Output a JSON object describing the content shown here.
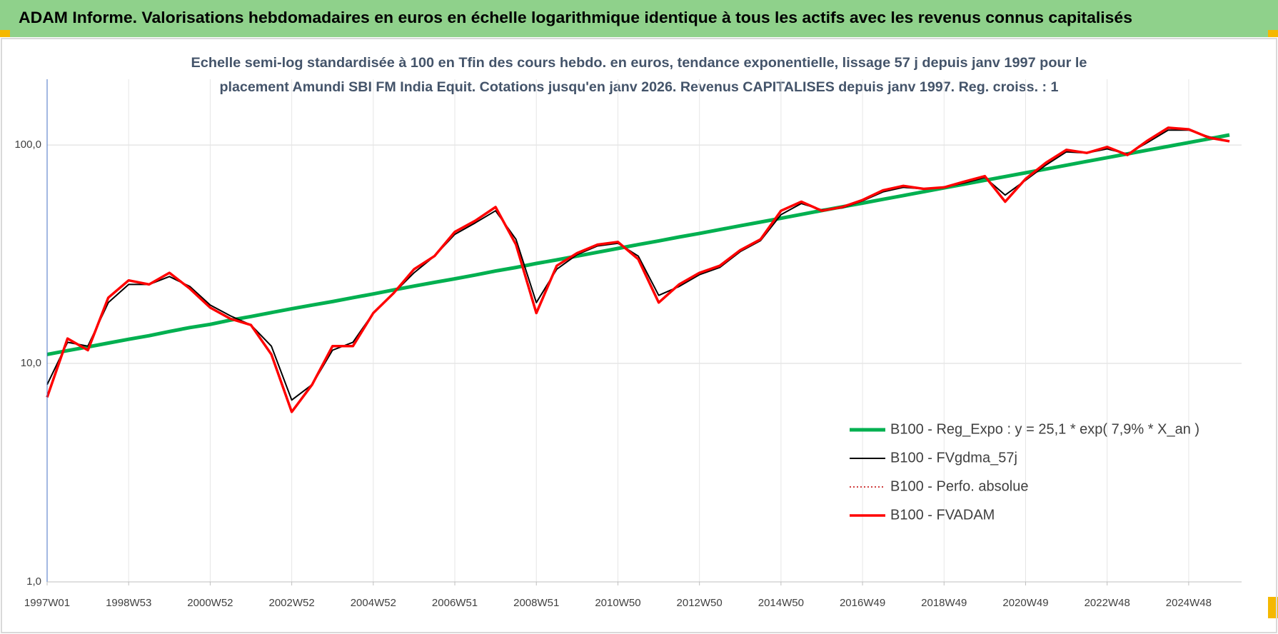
{
  "chart_data": {
    "type": "line",
    "header": "ADAM Informe. Valorisations hebdomadaires en euros en échelle logarithmique identique à tous les actifs avec les revenus connus capitalisés",
    "subtitle": [
      "Echelle semi-log standardisée à 100 en Tfin des cours hebdo. en euros, tendance exponentielle, lissage 57 j depuis janv 1997 pour le",
      "placement Amundi SBI FM India Equit. Cotations jusqu'en janv 2026. Revenus CAPITALISES depuis janv 1997. Reg. croiss. : 1"
    ],
    "log_scale": true,
    "grid": true,
    "legend": "lower right",
    "ylim": [
      1,
      200
    ],
    "yticks": [
      {
        "value": 1,
        "label": "1,0"
      },
      {
        "value": 10,
        "label": "10,0"
      },
      {
        "value": 100,
        "label": "100,0"
      }
    ],
    "categories": [
      "1997W01",
      null,
      null,
      null,
      "1998W53",
      null,
      null,
      null,
      "2000W52",
      null,
      null,
      null,
      "2002W52",
      null,
      null,
      null,
      "2004W52",
      null,
      null,
      null,
      "2006W51",
      null,
      null,
      null,
      "2008W51",
      null,
      null,
      null,
      "2010W50",
      null,
      null,
      null,
      "2012W50",
      null,
      null,
      null,
      "2014W50",
      null,
      null,
      null,
      "2016W49",
      null,
      null,
      null,
      "2018W49",
      null,
      null,
      null,
      "2020W49",
      null,
      null,
      null,
      "2022W48",
      null,
      null,
      null,
      "2024W48",
      null,
      null
    ],
    "series": [
      {
        "name": "B100 - Reg_Expo : y = 25,1 * exp( 7,9% *  X_an )",
        "color": "#00b050",
        "style": "solid",
        "width": 5,
        "values": [
          11.0,
          11.45,
          11.9,
          12.4,
          12.9,
          13.4,
          14.0,
          14.6,
          15.1,
          15.8,
          16.4,
          17.1,
          17.8,
          18.5,
          19.2,
          20.0,
          20.8,
          21.7,
          22.6,
          23.5,
          24.4,
          25.4,
          26.5,
          27.5,
          28.7,
          29.8,
          31.0,
          32.3,
          33.6,
          35.0,
          36.4,
          37.9,
          39.4,
          41.0,
          42.7,
          44.4,
          46.2,
          48.1,
          50.1,
          52.1,
          54.2,
          56.4,
          58.7,
          61.1,
          63.6,
          66.2,
          68.9,
          71.7,
          74.6,
          77.6,
          80.8,
          84.1,
          87.5,
          91.1,
          94.8,
          98.6,
          102.6,
          106.8,
          111.2
        ]
      },
      {
        "name": "B100 - FVgdma_57j",
        "color": "#000000",
        "style": "solid",
        "width": 2,
        "values": [
          8,
          12.5,
          12,
          19,
          23,
          23,
          25,
          22.5,
          18.5,
          16.5,
          15,
          12,
          6.8,
          8,
          11.5,
          12.5,
          17,
          21,
          26,
          31,
          39,
          44,
          50,
          37,
          19,
          27,
          31.5,
          34.5,
          35.5,
          31,
          20.5,
          22.5,
          25.5,
          27.5,
          32.5,
          36.5,
          48,
          54,
          50.5,
          51.5,
          55.5,
          61,
          64,
          63,
          64,
          67,
          71,
          59,
          69,
          81,
          93,
          92,
          96,
          91,
          103,
          117,
          117,
          109,
          104
        ]
      },
      {
        "name": "B100 - Perfo. absolue",
        "color": "#c00000",
        "style": "dotted",
        "width": 1.5,
        "values": [
          7,
          13,
          11.5,
          20,
          24,
          23,
          26,
          22,
          18,
          16,
          15,
          11,
          6,
          8,
          12,
          12,
          17,
          21,
          27,
          31,
          40,
          45,
          52,
          35,
          17,
          28,
          32,
          35,
          36,
          30,
          19,
          23,
          26,
          28,
          33,
          37,
          50,
          55,
          50,
          52,
          56,
          62,
          65,
          63,
          64,
          68,
          72,
          55,
          70,
          83,
          95,
          92,
          98,
          90,
          105,
          120,
          118,
          108,
          104
        ]
      },
      {
        "name": "B100 - FVADAM",
        "color": "#ff0000",
        "style": "solid",
        "width": 3.5,
        "values": [
          7,
          13,
          11.5,
          20,
          24,
          23,
          26,
          22,
          18,
          16,
          15,
          11,
          6,
          8,
          12,
          12,
          17,
          21,
          27,
          31,
          40,
          45,
          52,
          35,
          17,
          28,
          32,
          35,
          36,
          30,
          19,
          23,
          26,
          28,
          33,
          37,
          50,
          55,
          50,
          52,
          56,
          62,
          65,
          63,
          64,
          68,
          72,
          55,
          70,
          83,
          95,
          92,
          98,
          90,
          105,
          120,
          118,
          108,
          104
        ]
      }
    ]
  }
}
